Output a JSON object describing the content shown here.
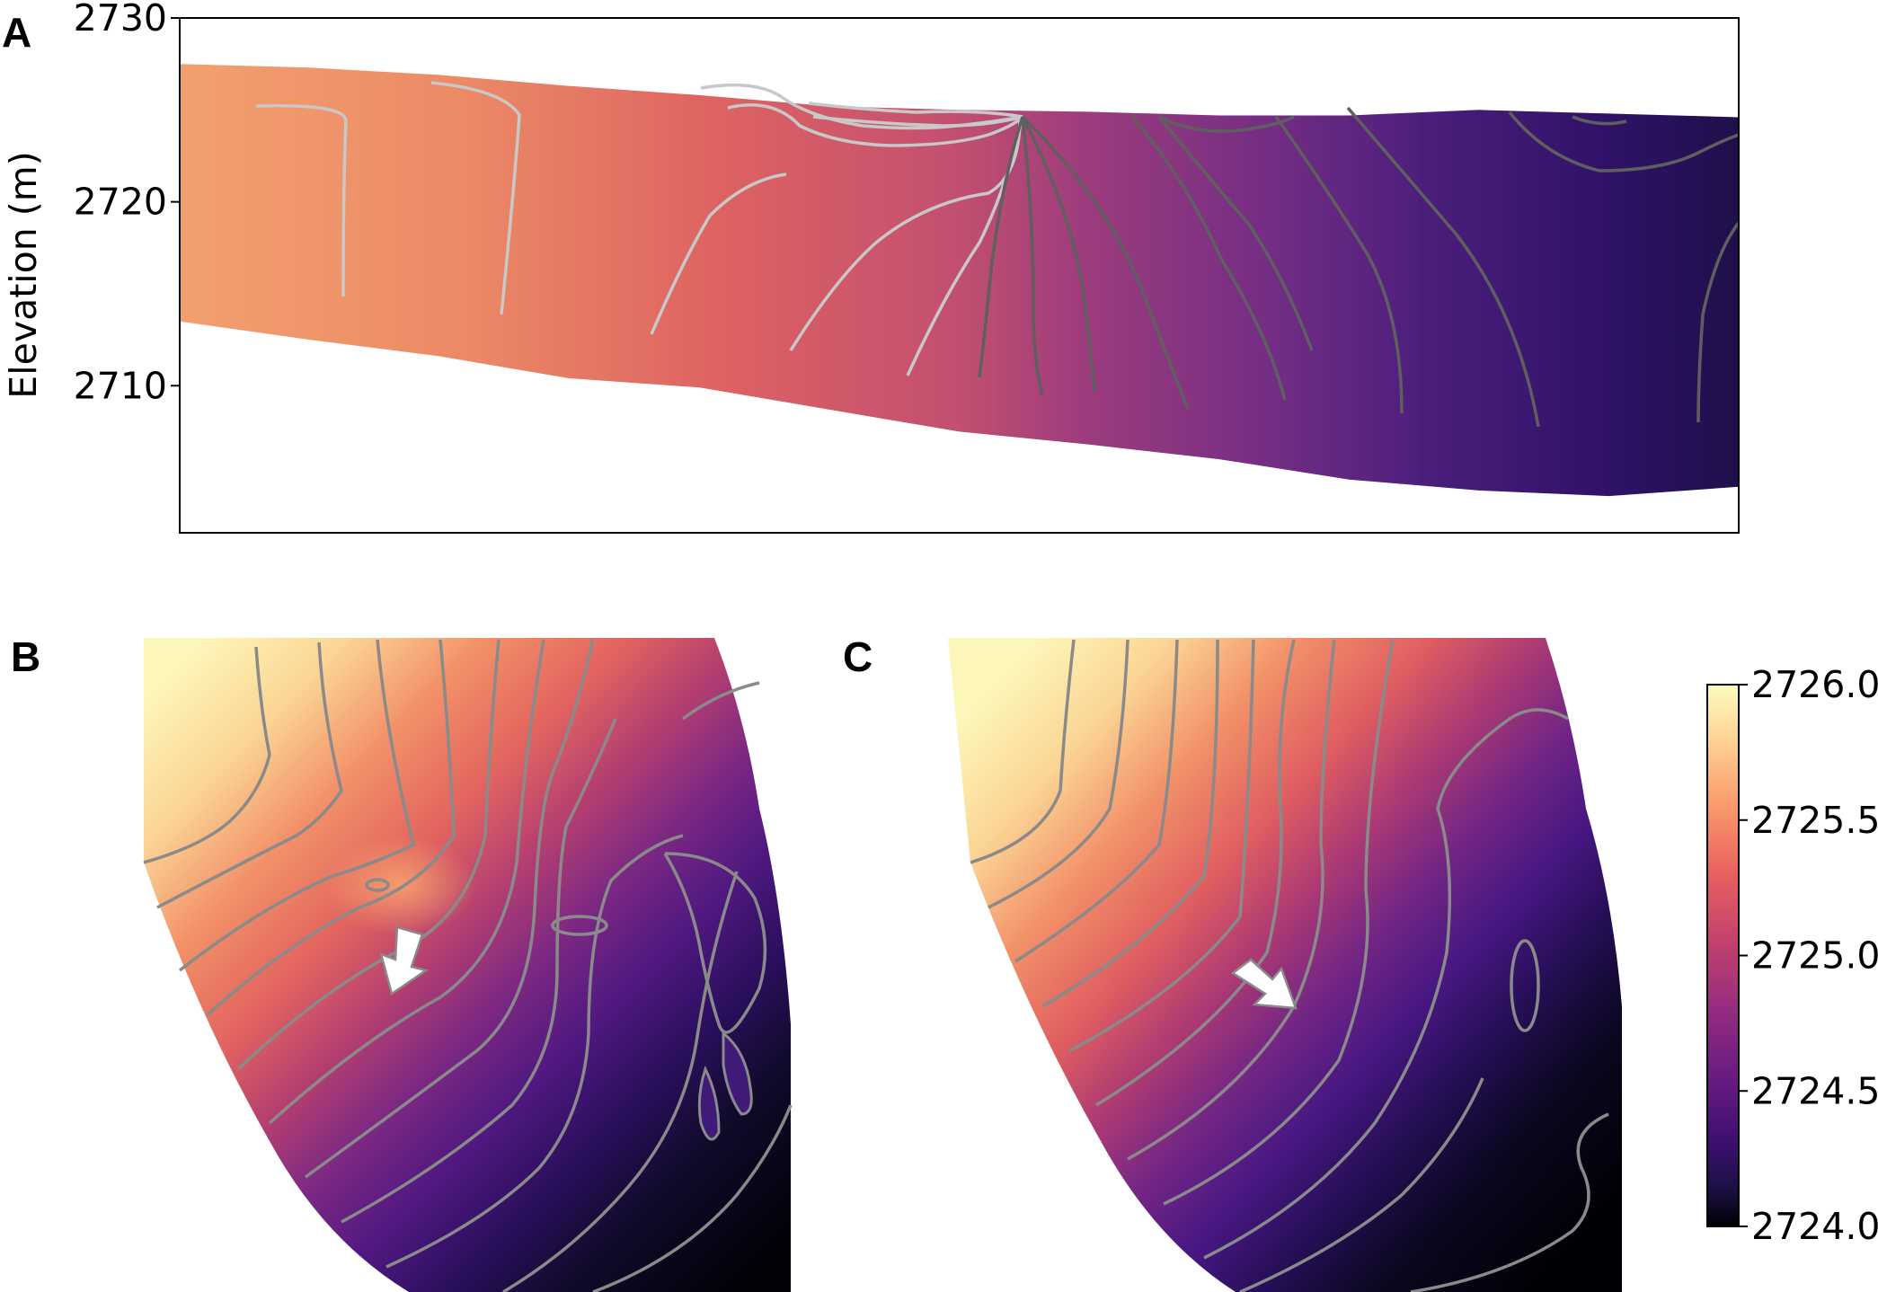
{
  "panels": {
    "a": {
      "letter": "A"
    },
    "b": {
      "letter": "B"
    },
    "c": {
      "letter": "C"
    }
  },
  "chart_data": [
    {
      "panel": "A",
      "type": "heatmap",
      "title": "",
      "xlabel": "",
      "ylabel": "Elevation (m)",
      "ylim": [
        2702,
        2730
      ],
      "yticks": [
        2710,
        2720,
        2730
      ],
      "x_ticks_shown": false,
      "colormap": "magma",
      "color_range": [
        2724.0,
        2726.0
      ],
      "grid": false,
      "contours": "light grey on warm side, dark grey on cool side",
      "section_top_elevation": [
        2727.5,
        2727.3,
        2726.9,
        2726.3,
        2725.8,
        2725.2,
        2725.0,
        2724.9,
        2724.7,
        2724.7,
        2725.0,
        2724.8,
        2724.6
      ],
      "section_bottom_elevation": [
        2713.5,
        2712.5,
        2711.6,
        2710.4,
        2709.9,
        2708.7,
        2707.5,
        2706.8,
        2706.0,
        2704.9,
        2704.3,
        2704.0,
        2704.5
      ]
    },
    {
      "panel": "B",
      "type": "heatmap",
      "title": "",
      "colormap": "magma",
      "color_range": [
        2724.0,
        2726.0
      ],
      "contours": "grey isolines",
      "annotation": "white arrow",
      "high_corner": "upper-left",
      "low_corner": "lower-right"
    },
    {
      "panel": "C",
      "type": "heatmap",
      "title": "",
      "colormap": "magma",
      "color_range": [
        2724.0,
        2726.0
      ],
      "contours": "grey isolines",
      "annotation": "white arrow",
      "high_corner": "upper-left",
      "low_corner": "lower-right"
    },
    {
      "panel": "colorbar",
      "type": "heatmap",
      "colormap": "magma",
      "range": [
        2724.0,
        2726.0
      ],
      "ticks": [
        "2726.0",
        "2725.5",
        "2725.0",
        "2724.5",
        "2724.0"
      ]
    }
  ]
}
